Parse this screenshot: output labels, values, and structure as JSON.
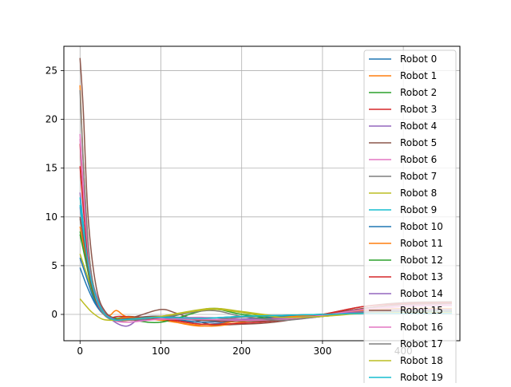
{
  "chart_data": {
    "type": "line",
    "title": "",
    "xlabel": "",
    "ylabel": "",
    "xlim": [
      -20,
      470
    ],
    "ylim": [
      -2.7,
      27.5
    ],
    "xticks": [
      0,
      100,
      200,
      300,
      400
    ],
    "yticks": [
      0,
      5,
      10,
      15,
      20,
      25
    ],
    "grid": true,
    "legend_position": "upper-right",
    "series": [
      {
        "name": "Robot 0",
        "color": "#1f77b4",
        "values": [
          [
            0,
            4.8
          ],
          [
            8,
            3.0
          ],
          [
            18,
            1.2
          ],
          [
            28,
            0.1
          ],
          [
            40,
            -0.4
          ],
          [
            60,
            -0.4
          ],
          [
            100,
            -0.2
          ],
          [
            150,
            -1.0
          ],
          [
            200,
            -0.6
          ],
          [
            250,
            -0.2
          ],
          [
            300,
            0.0
          ],
          [
            350,
            0.3
          ],
          [
            400,
            0.3
          ],
          [
            460,
            0.3
          ]
        ]
      },
      {
        "name": "Robot 1",
        "color": "#ff7f0e",
        "values": [
          [
            0,
            23.5
          ],
          [
            5,
            14.0
          ],
          [
            12,
            5.5
          ],
          [
            22,
            1.2
          ],
          [
            35,
            -0.1
          ],
          [
            45,
            0.4
          ],
          [
            60,
            -0.3
          ],
          [
            100,
            -0.5
          ],
          [
            150,
            -1.2
          ],
          [
            200,
            -0.6
          ],
          [
            250,
            -0.2
          ],
          [
            300,
            0.0
          ],
          [
            350,
            0.4
          ],
          [
            400,
            0.6
          ],
          [
            460,
            0.6
          ]
        ]
      },
      {
        "name": "Robot 2",
        "color": "#2ca02c",
        "values": [
          [
            0,
            8.5
          ],
          [
            8,
            5.5
          ],
          [
            18,
            2.0
          ],
          [
            30,
            0.2
          ],
          [
            45,
            -0.4
          ],
          [
            60,
            -0.2
          ],
          [
            100,
            -0.4
          ],
          [
            160,
            0.6
          ],
          [
            200,
            0.2
          ],
          [
            250,
            -0.4
          ],
          [
            300,
            -0.2
          ],
          [
            350,
            0.2
          ],
          [
            400,
            0.4
          ],
          [
            460,
            0.3
          ]
        ]
      },
      {
        "name": "Robot 3",
        "color": "#d62728",
        "values": [
          [
            0,
            17.5
          ],
          [
            5,
            11.0
          ],
          [
            12,
            4.8
          ],
          [
            22,
            1.2
          ],
          [
            35,
            -0.3
          ],
          [
            50,
            -0.2
          ],
          [
            100,
            -0.4
          ],
          [
            150,
            -0.8
          ],
          [
            200,
            -0.6
          ],
          [
            250,
            -0.3
          ],
          [
            300,
            0.0
          ],
          [
            350,
            0.6
          ],
          [
            400,
            1.0
          ],
          [
            460,
            1.2
          ]
        ]
      },
      {
        "name": "Robot 4",
        "color": "#9467bd",
        "values": [
          [
            0,
            12.5
          ],
          [
            6,
            8.0
          ],
          [
            14,
            3.8
          ],
          [
            26,
            0.8
          ],
          [
            40,
            -0.6
          ],
          [
            58,
            -1.2
          ],
          [
            75,
            -0.4
          ],
          [
            100,
            -0.2
          ],
          [
            150,
            -0.4
          ],
          [
            200,
            -0.2
          ],
          [
            250,
            -0.1
          ],
          [
            300,
            0.0
          ],
          [
            350,
            0.1
          ],
          [
            400,
            0.2
          ],
          [
            460,
            0.2
          ]
        ]
      },
      {
        "name": "Robot 5",
        "color": "#8c564b",
        "values": [
          [
            0,
            26.3
          ],
          [
            4,
            21.0
          ],
          [
            10,
            10.0
          ],
          [
            20,
            2.8
          ],
          [
            32,
            0.2
          ],
          [
            50,
            -0.6
          ],
          [
            70,
            -0.2
          ],
          [
            100,
            0.5
          ],
          [
            120,
            0.1
          ],
          [
            160,
            -1.0
          ],
          [
            200,
            -1.0
          ],
          [
            240,
            -0.8
          ],
          [
            300,
            0.0
          ],
          [
            350,
            0.8
          ],
          [
            400,
            1.2
          ],
          [
            460,
            1.3
          ]
        ]
      },
      {
        "name": "Robot 6",
        "color": "#e377c2",
        "values": [
          [
            0,
            18.5
          ],
          [
            5,
            12.0
          ],
          [
            12,
            5.0
          ],
          [
            22,
            1.1
          ],
          [
            35,
            -0.3
          ],
          [
            55,
            -0.6
          ],
          [
            100,
            -0.4
          ],
          [
            150,
            -0.3
          ],
          [
            200,
            -0.5
          ],
          [
            250,
            -0.6
          ],
          [
            300,
            -0.2
          ],
          [
            350,
            0.4
          ],
          [
            400,
            0.8
          ],
          [
            460,
            0.9
          ]
        ]
      },
      {
        "name": "Robot 7",
        "color": "#7f7f7f",
        "values": [
          [
            0,
            9.8
          ],
          [
            7,
            6.5
          ],
          [
            16,
            2.8
          ],
          [
            28,
            0.4
          ],
          [
            42,
            -0.6
          ],
          [
            60,
            -0.5
          ],
          [
            100,
            -0.3
          ],
          [
            150,
            -0.6
          ],
          [
            200,
            -0.3
          ],
          [
            250,
            -0.1
          ],
          [
            300,
            0.0
          ],
          [
            350,
            0.2
          ],
          [
            400,
            0.3
          ],
          [
            460,
            0.3
          ]
        ]
      },
      {
        "name": "Robot 8",
        "color": "#bcbd22",
        "values": [
          [
            0,
            6.2
          ],
          [
            8,
            4.2
          ],
          [
            18,
            1.6
          ],
          [
            30,
            0.0
          ],
          [
            45,
            -0.6
          ],
          [
            60,
            -0.6
          ],
          [
            100,
            -0.2
          ],
          [
            160,
            0.6
          ],
          [
            200,
            0.3
          ],
          [
            250,
            -0.2
          ],
          [
            300,
            -0.1
          ],
          [
            350,
            0.2
          ],
          [
            400,
            0.3
          ],
          [
            460,
            0.3
          ]
        ]
      },
      {
        "name": "Robot 9",
        "color": "#17becf",
        "values": [
          [
            0,
            12.0
          ],
          [
            6,
            8.0
          ],
          [
            14,
            3.6
          ],
          [
            26,
            0.6
          ],
          [
            40,
            -0.5
          ],
          [
            60,
            -0.5
          ],
          [
            100,
            -0.3
          ],
          [
            150,
            -0.4
          ],
          [
            200,
            -0.2
          ],
          [
            250,
            -0.1
          ],
          [
            300,
            0.0
          ],
          [
            350,
            0.1
          ],
          [
            400,
            0.1
          ],
          [
            460,
            0.1
          ]
        ]
      },
      {
        "name": "Robot 10",
        "color": "#1f77b4",
        "values": [
          [
            0,
            5.8
          ],
          [
            8,
            3.8
          ],
          [
            18,
            1.4
          ],
          [
            30,
            0.0
          ],
          [
            45,
            -0.5
          ],
          [
            60,
            -0.4
          ],
          [
            100,
            -0.3
          ],
          [
            150,
            -0.8
          ],
          [
            200,
            -0.5
          ],
          [
            250,
            -0.2
          ],
          [
            300,
            0.0
          ],
          [
            350,
            0.2
          ],
          [
            400,
            0.3
          ],
          [
            460,
            0.3
          ]
        ]
      },
      {
        "name": "Robot 11",
        "color": "#ff7f0e",
        "values": [
          [
            0,
            9.0
          ],
          [
            7,
            6.0
          ],
          [
            16,
            2.5
          ],
          [
            28,
            0.3
          ],
          [
            42,
            -0.5
          ],
          [
            60,
            -0.3
          ],
          [
            100,
            -0.6
          ],
          [
            160,
            -1.2
          ],
          [
            200,
            -0.8
          ],
          [
            250,
            -0.3
          ],
          [
            300,
            0.0
          ],
          [
            350,
            0.4
          ],
          [
            400,
            0.6
          ],
          [
            460,
            0.6
          ]
        ]
      },
      {
        "name": "Robot 12",
        "color": "#2ca02c",
        "values": [
          [
            0,
            8.2
          ],
          [
            7,
            5.5
          ],
          [
            16,
            2.2
          ],
          [
            28,
            0.2
          ],
          [
            42,
            -0.5
          ],
          [
            60,
            -0.5
          ],
          [
            100,
            -0.8
          ],
          [
            160,
            0.5
          ],
          [
            200,
            0.0
          ],
          [
            250,
            -0.5
          ],
          [
            300,
            -0.2
          ],
          [
            350,
            0.2
          ],
          [
            400,
            0.4
          ],
          [
            460,
            0.4
          ]
        ]
      },
      {
        "name": "Robot 13",
        "color": "#d62728",
        "values": [
          [
            0,
            15.2
          ],
          [
            5,
            10.0
          ],
          [
            12,
            4.5
          ],
          [
            22,
            1.0
          ],
          [
            35,
            -0.2
          ],
          [
            50,
            -0.6
          ],
          [
            100,
            -0.5
          ],
          [
            150,
            -1.0
          ],
          [
            200,
            -0.9
          ],
          [
            250,
            -0.6
          ],
          [
            300,
            0.0
          ],
          [
            350,
            0.8
          ],
          [
            400,
            1.1
          ],
          [
            460,
            1.2
          ]
        ]
      },
      {
        "name": "Robot 14",
        "color": "#9467bd",
        "values": [
          [
            0,
            11.0
          ],
          [
            6,
            7.2
          ],
          [
            14,
            3.2
          ],
          [
            26,
            0.5
          ],
          [
            40,
            -0.4
          ],
          [
            60,
            -0.8
          ],
          [
            100,
            -0.3
          ],
          [
            150,
            -0.6
          ],
          [
            200,
            -0.5
          ],
          [
            250,
            -0.4
          ],
          [
            300,
            -0.1
          ],
          [
            350,
            0.3
          ],
          [
            400,
            0.5
          ],
          [
            460,
            0.5
          ]
        ]
      },
      {
        "name": "Robot 15",
        "color": "#8c564b",
        "values": [
          [
            0,
            10.0
          ],
          [
            6,
            6.8
          ],
          [
            14,
            3.0
          ],
          [
            26,
            0.5
          ],
          [
            40,
            -0.5
          ],
          [
            60,
            -0.4
          ],
          [
            100,
            -0.2
          ],
          [
            150,
            -0.6
          ],
          [
            200,
            -0.7
          ],
          [
            250,
            -0.6
          ],
          [
            300,
            -0.1
          ],
          [
            350,
            0.6
          ],
          [
            400,
            1.0
          ],
          [
            460,
            1.1
          ]
        ]
      },
      {
        "name": "Robot 16",
        "color": "#e377c2",
        "values": [
          [
            0,
            18.0
          ],
          [
            5,
            11.5
          ],
          [
            12,
            5.0
          ],
          [
            22,
            1.1
          ],
          [
            35,
            -0.3
          ],
          [
            55,
            -0.8
          ],
          [
            100,
            -0.5
          ],
          [
            150,
            -0.5
          ],
          [
            200,
            -0.6
          ],
          [
            250,
            -0.5
          ],
          [
            300,
            -0.1
          ],
          [
            350,
            0.5
          ],
          [
            400,
            0.9
          ],
          [
            460,
            1.0
          ]
        ]
      },
      {
        "name": "Robot 17",
        "color": "#7f7f7f",
        "values": [
          [
            0,
            23.0
          ],
          [
            5,
            14.0
          ],
          [
            12,
            5.5
          ],
          [
            22,
            1.2
          ],
          [
            35,
            -0.4
          ],
          [
            55,
            -0.6
          ],
          [
            100,
            -0.3
          ],
          [
            160,
            0.4
          ],
          [
            200,
            -0.2
          ],
          [
            250,
            -0.6
          ],
          [
            300,
            -0.2
          ],
          [
            350,
            0.2
          ],
          [
            400,
            0.4
          ],
          [
            460,
            0.4
          ]
        ]
      },
      {
        "name": "Robot 18",
        "color": "#bcbd22",
        "values": [
          [
            0,
            1.6
          ],
          [
            6,
            1.0
          ],
          [
            15,
            0.2
          ],
          [
            28,
            -0.5
          ],
          [
            45,
            -0.6
          ],
          [
            60,
            -0.5
          ],
          [
            100,
            -0.2
          ],
          [
            160,
            0.5
          ],
          [
            200,
            0.2
          ],
          [
            250,
            -0.3
          ],
          [
            300,
            -0.2
          ],
          [
            350,
            0.1
          ],
          [
            400,
            0.2
          ],
          [
            460,
            0.2
          ]
        ]
      },
      {
        "name": "Robot 19",
        "color": "#17becf",
        "values": [
          [
            0,
            11.2
          ],
          [
            6,
            7.5
          ],
          [
            14,
            3.4
          ],
          [
            26,
            0.6
          ],
          [
            40,
            -0.5
          ],
          [
            60,
            -0.5
          ],
          [
            100,
            -0.3
          ],
          [
            150,
            -0.4
          ],
          [
            200,
            -0.2
          ],
          [
            250,
            -0.1
          ],
          [
            300,
            0.0
          ],
          [
            350,
            0.1
          ],
          [
            400,
            0.1
          ],
          [
            460,
            0.1
          ]
        ]
      }
    ]
  }
}
